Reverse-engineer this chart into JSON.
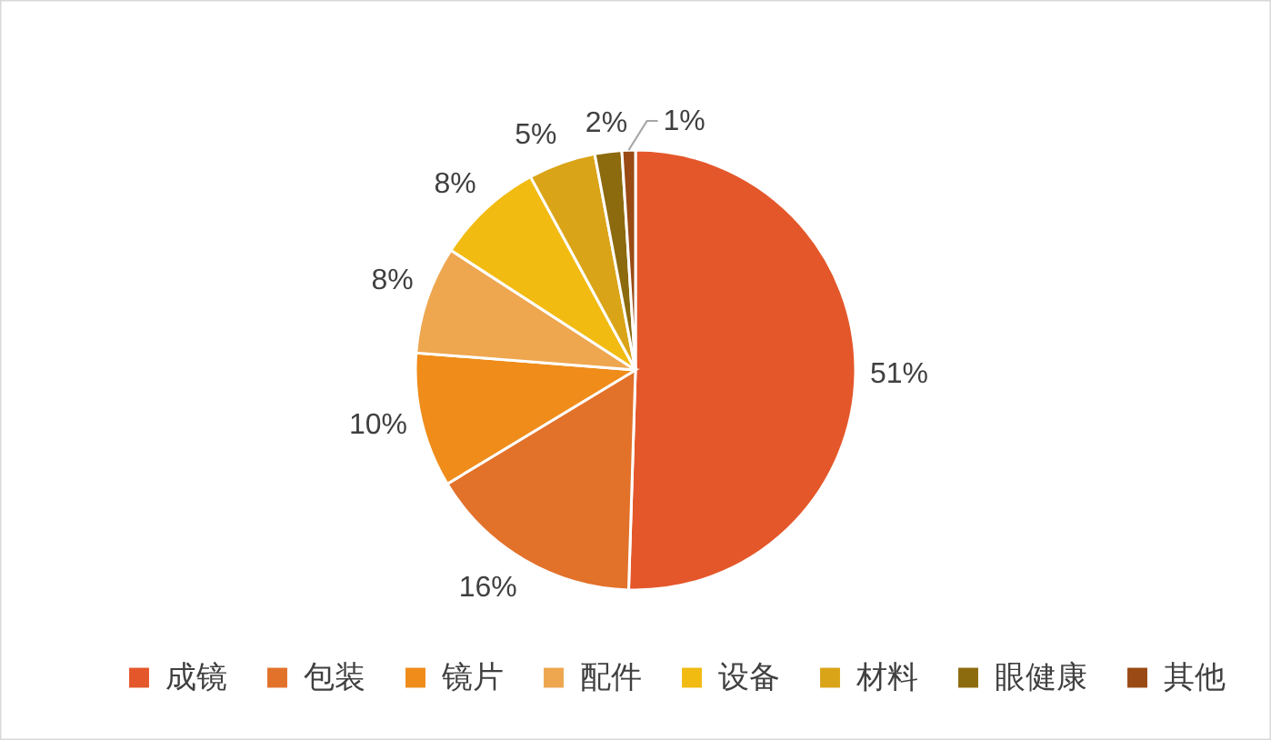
{
  "chart_data": {
    "type": "pie",
    "categories": [
      "成镜",
      "包装",
      "镜片",
      "配件",
      "设备",
      "材料",
      "眼健康",
      "其他"
    ],
    "values": [
      51,
      16,
      10,
      8,
      8,
      5,
      2,
      1
    ],
    "value_labels": [
      "51%",
      "16%",
      "10%",
      "8%",
      "8%",
      "5%",
      "2%",
      "1%"
    ],
    "colors": [
      "#e4572a",
      "#e2712a",
      "#ef8c1a",
      "#eea64f",
      "#f2bb12",
      "#daa418",
      "#8c6a0e",
      "#9a4a14"
    ],
    "legend": "bottom"
  }
}
